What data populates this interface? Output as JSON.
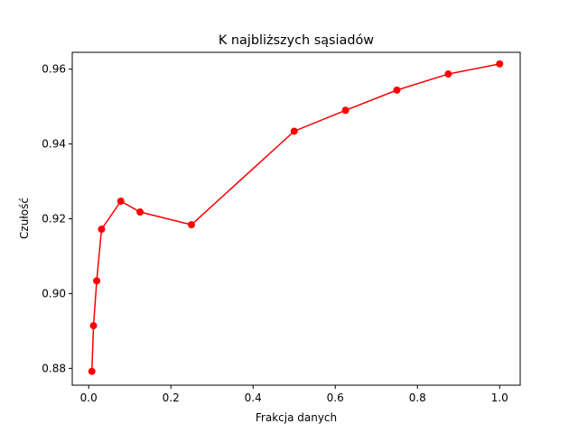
{
  "chart_data": {
    "type": "line",
    "title": "K najbliższych sąsiadów",
    "xlabel": "Frakcja danych",
    "ylabel": "Czułość",
    "xlim": [
      -0.04,
      1.05
    ],
    "ylim": [
      0.8755,
      0.9645
    ],
    "xticks": [
      0.0,
      0.2,
      0.4,
      0.6,
      0.8,
      1.0
    ],
    "xtick_labels": [
      "0.0",
      "0.2",
      "0.4",
      "0.6",
      "0.8",
      "1.0"
    ],
    "yticks": [
      0.88,
      0.9,
      0.92,
      0.94,
      0.96
    ],
    "ytick_labels": [
      "0.88",
      "0.90",
      "0.92",
      "0.94",
      "0.96"
    ],
    "grid": false,
    "series": [
      {
        "color": "#ff0000",
        "marker": "circle",
        "x": [
          0.0078,
          0.0117,
          0.0195,
          0.0313,
          0.0781,
          0.125,
          0.25,
          0.5,
          0.625,
          0.75,
          0.875,
          1.0
        ],
        "y": [
          0.8792,
          0.8914,
          0.9034,
          0.9172,
          0.9247,
          0.9218,
          0.9184,
          0.9434,
          0.949,
          0.9544,
          0.9587,
          0.9614
        ]
      }
    ]
  }
}
